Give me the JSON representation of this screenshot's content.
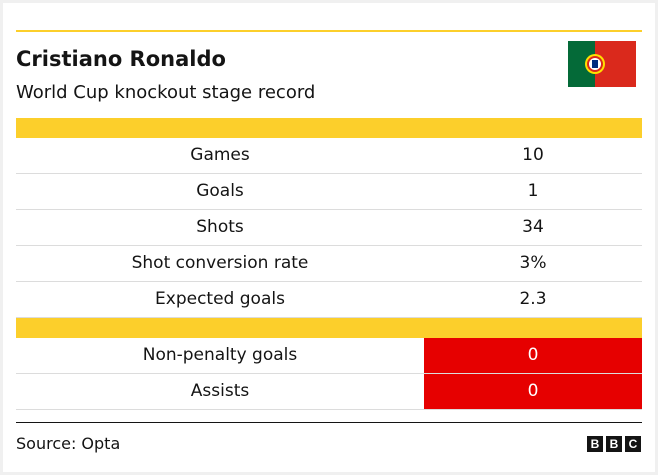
{
  "header": {
    "title": "Cristiano Ronaldo",
    "subtitle": "World Cup knockout stage record"
  },
  "table": {
    "sections": [
      {
        "rows": [
          [
            "Games",
            10
          ],
          [
            "Goals",
            1
          ],
          [
            "Shots",
            34
          ],
          [
            "Shot conversion rate",
            "3%"
          ],
          [
            "Expected goals",
            2.3
          ]
        ]
      },
      {
        "highlight": true,
        "rows": [
          [
            "Non-penalty goals",
            0
          ],
          [
            "Assists",
            0
          ]
        ]
      }
    ]
  },
  "footer": {
    "source": "Source: Opta",
    "logo": [
      "B",
      "B",
      "C"
    ]
  }
}
